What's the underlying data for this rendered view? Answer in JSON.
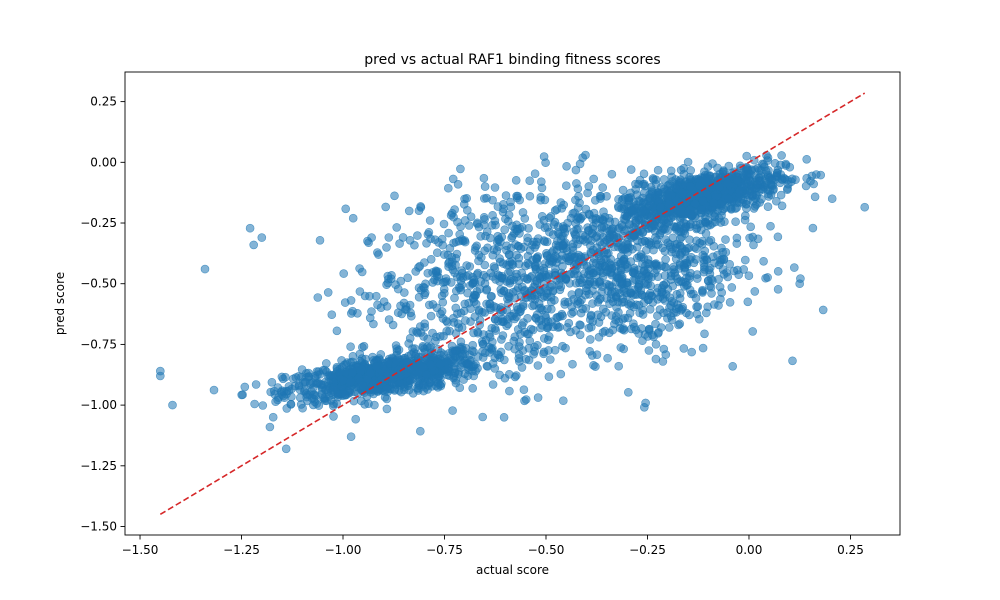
{
  "chart_data": {
    "type": "scatter",
    "title": "pred vs actual RAF1 binding fitness scores",
    "xlabel": "actual score",
    "ylabel": "pred score",
    "xlim": [
      -1.537,
      0.372
    ],
    "ylim": [
      -1.535,
      0.372
    ],
    "xticks": [
      -1.5,
      -1.25,
      -1.0,
      -0.75,
      -0.5,
      -0.25,
      0.0,
      0.25
    ],
    "xtick_labels": [
      "−1.50",
      "−1.25",
      "−1.00",
      "−0.75",
      "−0.50",
      "−0.25",
      "0.00",
      "0.25"
    ],
    "yticks": [
      -1.5,
      -1.25,
      -1.0,
      -0.75,
      -0.5,
      -0.25,
      0.0,
      0.25
    ],
    "ytick_labels": [
      "−1.50",
      "−1.25",
      "−1.00",
      "−0.75",
      "−0.50",
      "−0.25",
      "0.00",
      "0.25"
    ],
    "grid": false,
    "colors": {
      "points": "#1f77b4",
      "reference_line": "#d62728"
    },
    "point_alpha": 0.55,
    "reference_line": {
      "style": "dashed",
      "x": [
        -1.45,
        0.285
      ],
      "y": [
        -1.45,
        0.285
      ]
    },
    "clusters": [
      {
        "center": [
          -0.9,
          -0.88
        ],
        "spread": [
          0.12,
          0.05
        ],
        "count": 900,
        "corr": 0.6
      },
      {
        "center": [
          -0.12,
          -0.14
        ],
        "spread": [
          0.1,
          0.06
        ],
        "count": 900,
        "corr": 0.6
      },
      {
        "center": [
          -0.62,
          -0.47
        ],
        "spread": [
          0.18,
          0.2
        ],
        "count": 700,
        "corr": 0.3
      },
      {
        "center": [
          -0.35,
          -0.45
        ],
        "spread": [
          0.15,
          0.2
        ],
        "count": 500,
        "corr": 0.3
      },
      {
        "center": [
          -0.2,
          -0.45
        ],
        "spread": [
          0.12,
          0.15
        ],
        "count": 300,
        "corr": 0.2
      }
    ],
    "outliers": [
      [
        -1.45,
        -0.88
      ],
      [
        -1.45,
        -0.86
      ],
      [
        -1.42,
        -1.0
      ],
      [
        -1.34,
        -0.44
      ],
      [
        -1.22,
        -0.34
      ],
      [
        -1.2,
        -0.31
      ],
      [
        -1.18,
        -1.09
      ],
      [
        -1.14,
        -1.18
      ],
      [
        -0.98,
        -1.13
      ],
      [
        -0.04,
        -0.84
      ],
      [
        0.125,
        -0.5
      ],
      [
        0.205,
        -0.15
      ],
      [
        0.285,
        -0.185
      ],
      [
        -0.65,
        -0.1
      ],
      [
        -0.29,
        -0.03
      ]
    ]
  }
}
